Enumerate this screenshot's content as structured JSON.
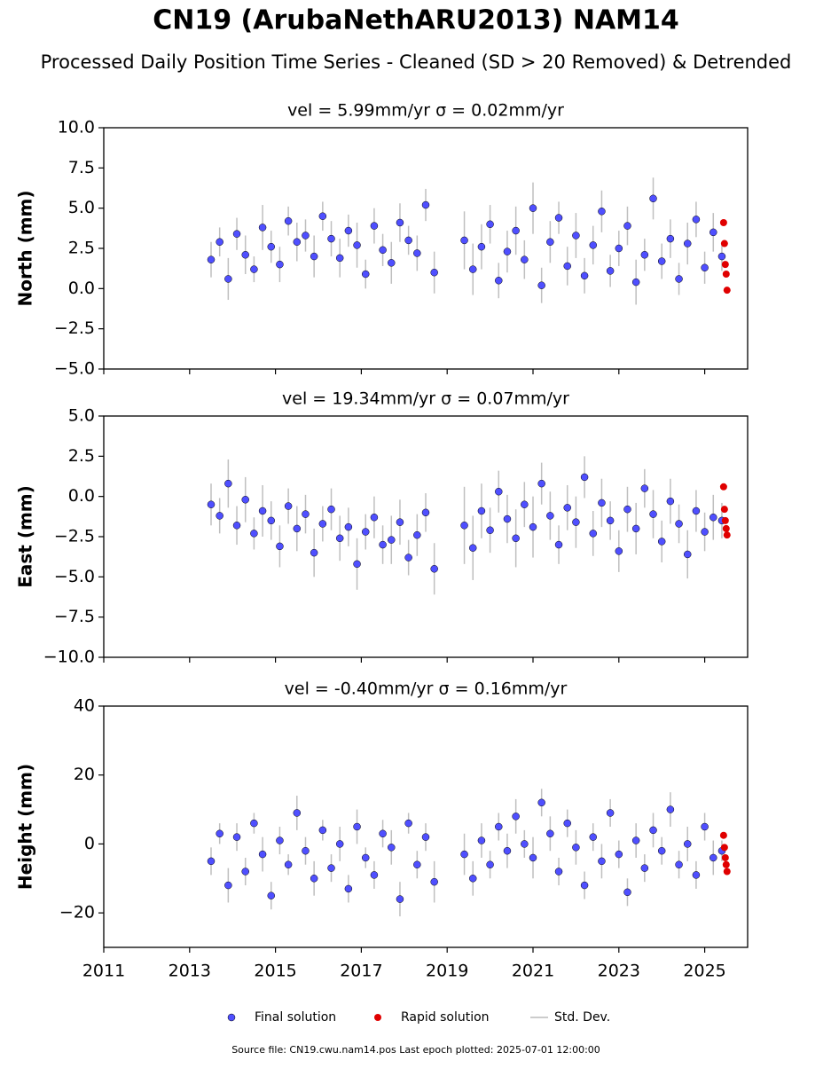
{
  "title": "CN19 (ArubaNethARU2013) NAM14",
  "subtitle": "Processed Daily Position Time Series - Cleaned (SD > 20 Removed) & Detrended",
  "footer": "Source file: CN19.cwu.nam14.pos  Last epoch plotted: 2025-07-01 12:00:00",
  "chart_data": [
    {
      "type": "scatter",
      "title": "vel = 5.99mm/yr   σ = 0.02mm/yr",
      "y_label": "North (mm)",
      "xlim": [
        2011,
        2026
      ],
      "xticks": [
        2011,
        2013,
        2015,
        2017,
        2019,
        2021,
        2023,
        2025
      ],
      "ylim": [
        -5,
        10
      ],
      "yticks": [
        {
          "value": -5,
          "label": "−5.0"
        },
        {
          "value": -2.5,
          "label": "−2.5"
        },
        {
          "value": 0,
          "label": "0.0"
        },
        2.5,
        {
          "value": 5,
          "label": "5.0"
        },
        7.5,
        {
          "value": 10,
          "label": "10.0"
        }
      ],
      "series": [
        {
          "name": "Final solution",
          "color": "#4f4fff",
          "error_name": "Std. Dev.",
          "error_color": "#b0b0b0",
          "x": [
            2013.5,
            2013.7,
            2013.9,
            2014.1,
            2014.3,
            2014.5,
            2014.7,
            2014.9,
            2015.1,
            2015.3,
            2015.5,
            2015.7,
            2015.9,
            2016.1,
            2016.3,
            2016.5,
            2016.7,
            2016.9,
            2017.1,
            2017.3,
            2017.5,
            2017.7,
            2017.9,
            2018.1,
            2018.3,
            2018.5,
            2018.7,
            2019.4,
            2019.6,
            2019.8,
            2020.0,
            2020.2,
            2020.4,
            2020.6,
            2020.8,
            2021.0,
            2021.2,
            2021.4,
            2021.6,
            2021.8,
            2022.0,
            2022.2,
            2022.4,
            2022.6,
            2022.8,
            2023.0,
            2023.2,
            2023.4,
            2023.6,
            2023.8,
            2024.0,
            2024.2,
            2024.4,
            2024.6,
            2024.8,
            2025.0,
            2025.2,
            2025.4
          ],
          "values": [
            1.8,
            2.9,
            0.6,
            3.4,
            2.1,
            1.2,
            3.8,
            2.6,
            1.5,
            4.2,
            2.9,
            3.3,
            2.0,
            4.5,
            3.1,
            1.9,
            3.6,
            2.7,
            0.9,
            3.9,
            2.4,
            1.6,
            4.1,
            3.0,
            2.2,
            5.2,
            1.0,
            3.0,
            1.2,
            2.6,
            4.0,
            0.5,
            2.3,
            3.6,
            1.8,
            5.0,
            0.2,
            2.9,
            4.4,
            1.4,
            3.3,
            0.8,
            2.7,
            4.8,
            1.1,
            2.5,
            3.9,
            0.4,
            2.1,
            5.6,
            1.7,
            3.1,
            0.6,
            2.8,
            4.3,
            1.3,
            3.5,
            2.0
          ],
          "errors": [
            1.1,
            0.9,
            1.3,
            1.0,
            1.2,
            0.8,
            1.4,
            1.0,
            1.1,
            0.9,
            1.2,
            1.0,
            1.3,
            0.9,
            1.1,
            1.2,
            1.0,
            1.4,
            0.9,
            1.1,
            1.0,
            1.3,
            1.2,
            0.9,
            1.1,
            1.0,
            1.3,
            1.8,
            1.6,
            1.4,
            1.2,
            1.1,
            1.3,
            1.5,
            1.2,
            1.6,
            1.1,
            1.3,
            1.0,
            1.2,
            1.4,
            1.1,
            1.2,
            1.3,
            1.0,
            1.1,
            1.2,
            1.4,
            1.0,
            1.3,
            1.1,
            1.2,
            1.0,
            1.3,
            1.1,
            1.0,
            1.2,
            0.9
          ]
        },
        {
          "name": "Rapid solution",
          "color": "#e00000",
          "x": [
            2025.44,
            2025.46,
            2025.48,
            2025.5,
            2025.52
          ],
          "values": [
            4.1,
            2.8,
            1.5,
            0.9,
            -0.1
          ]
        }
      ]
    },
    {
      "type": "scatter",
      "title": "vel = 19.34mm/yr   σ = 0.07mm/yr",
      "y_label": "East (mm)",
      "xlim": [
        2011,
        2026
      ],
      "xticks": [
        2011,
        2013,
        2015,
        2017,
        2019,
        2021,
        2023,
        2025
      ],
      "ylim": [
        -10,
        5
      ],
      "yticks": [
        {
          "value": -10,
          "label": "−10.0"
        },
        {
          "value": -7.5,
          "label": "−7.5"
        },
        {
          "value": -5,
          "label": "−5.0"
        },
        {
          "value": -2.5,
          "label": "−2.5"
        },
        {
          "value": 0,
          "label": "0.0"
        },
        2.5,
        {
          "value": 5,
          "label": "5.0"
        }
      ],
      "series": [
        {
          "color": "#4f4fff",
          "error_color": "#b0b0b0",
          "x": [
            2013.5,
            2013.7,
            2013.9,
            2014.1,
            2014.3,
            2014.5,
            2014.7,
            2014.9,
            2015.1,
            2015.3,
            2015.5,
            2015.7,
            2015.9,
            2016.1,
            2016.3,
            2016.5,
            2016.7,
            2016.9,
            2017.1,
            2017.3,
            2017.5,
            2017.7,
            2017.9,
            2018.1,
            2018.3,
            2018.5,
            2018.7,
            2019.4,
            2019.6,
            2019.8,
            2020.0,
            2020.2,
            2020.4,
            2020.6,
            2020.8,
            2021.0,
            2021.2,
            2021.4,
            2021.6,
            2021.8,
            2022.0,
            2022.2,
            2022.4,
            2022.6,
            2022.8,
            2023.0,
            2023.2,
            2023.4,
            2023.6,
            2023.8,
            2024.0,
            2024.2,
            2024.4,
            2024.6,
            2024.8,
            2025.0,
            2025.2,
            2025.4
          ],
          "values": [
            -0.5,
            -1.2,
            0.8,
            -1.8,
            -0.2,
            -2.3,
            -0.9,
            -1.5,
            -3.1,
            -0.6,
            -2.0,
            -1.1,
            -3.5,
            -1.7,
            -0.8,
            -2.6,
            -1.9,
            -4.2,
            -2.2,
            -1.3,
            -3.0,
            -2.7,
            -1.6,
            -3.8,
            -2.4,
            -1.0,
            -4.5,
            -1.8,
            -3.2,
            -0.9,
            -2.1,
            0.3,
            -1.4,
            -2.6,
            -0.5,
            -1.9,
            0.8,
            -1.2,
            -3.0,
            -0.7,
            -1.6,
            1.2,
            -2.3,
            -0.4,
            -1.5,
            -3.4,
            -0.8,
            -2.0,
            0.5,
            -1.1,
            -2.8,
            -0.3,
            -1.7,
            -3.6,
            -0.9,
            -2.2,
            -1.3,
            -1.5
          ],
          "errors": [
            1.3,
            1.1,
            1.5,
            1.2,
            1.4,
            1.0,
            1.6,
            1.2,
            1.3,
            1.1,
            1.4,
            1.2,
            1.5,
            1.1,
            1.3,
            1.4,
            1.2,
            1.6,
            1.1,
            1.3,
            1.2,
            1.5,
            1.4,
            1.1,
            1.3,
            1.2,
            1.6,
            2.4,
            2.0,
            1.7,
            1.4,
            1.3,
            1.5,
            1.8,
            1.4,
            1.9,
            1.3,
            1.5,
            1.2,
            1.4,
            1.6,
            1.3,
            1.4,
            1.5,
            1.2,
            1.3,
            1.4,
            1.6,
            1.2,
            1.5,
            1.3,
            1.4,
            1.2,
            1.5,
            1.3,
            1.2,
            1.4,
            1.1
          ]
        },
        {
          "color": "#e00000",
          "x": [
            2025.44,
            2025.46,
            2025.48,
            2025.5,
            2025.52
          ],
          "values": [
            0.6,
            -0.8,
            -1.5,
            -2.0,
            -2.4
          ]
        }
      ]
    },
    {
      "type": "scatter",
      "title": "vel = -0.40mm/yr   σ = 0.16mm/yr",
      "y_label": "Height (mm)",
      "xlim": [
        2011,
        2026
      ],
      "xticks": [
        2011,
        2013,
        2015,
        2017,
        2019,
        2021,
        2023,
        2025
      ],
      "ylim": [
        -30,
        40
      ],
      "yticks": [
        {
          "value": -20,
          "label": "−20"
        },
        0,
        20,
        40
      ],
      "series": [
        {
          "color": "#4f4fff",
          "error_color": "#b0b0b0",
          "x": [
            2013.5,
            2013.7,
            2013.9,
            2014.1,
            2014.3,
            2014.5,
            2014.7,
            2014.9,
            2015.1,
            2015.3,
            2015.5,
            2015.7,
            2015.9,
            2016.1,
            2016.3,
            2016.5,
            2016.7,
            2016.9,
            2017.1,
            2017.3,
            2017.5,
            2017.7,
            2017.9,
            2018.1,
            2018.3,
            2018.5,
            2018.7,
            2019.4,
            2019.6,
            2019.8,
            2020.0,
            2020.2,
            2020.4,
            2020.6,
            2020.8,
            2021.0,
            2021.2,
            2021.4,
            2021.6,
            2021.8,
            2022.0,
            2022.2,
            2022.4,
            2022.6,
            2022.8,
            2023.0,
            2023.2,
            2023.4,
            2023.6,
            2023.8,
            2024.0,
            2024.2,
            2024.4,
            2024.6,
            2024.8,
            2025.0,
            2025.2,
            2025.4
          ],
          "values": [
            -5,
            3,
            -12,
            2,
            -8,
            6,
            -3,
            -15,
            1,
            -6,
            9,
            -2,
            -10,
            4,
            -7,
            0,
            -13,
            5,
            -4,
            -9,
            3,
            -1,
            -16,
            6,
            -6,
            2,
            -11,
            -3,
            -10,
            1,
            -6,
            5,
            -2,
            8,
            0,
            -4,
            12,
            3,
            -8,
            6,
            -1,
            -12,
            2,
            -5,
            9,
            -3,
            -14,
            1,
            -7,
            4,
            -2,
            10,
            -6,
            0,
            -9,
            5,
            -4,
            -2
          ],
          "errors": [
            4,
            3,
            5,
            4,
            4,
            3,
            5,
            4,
            4,
            3,
            5,
            4,
            5,
            3,
            4,
            5,
            4,
            5,
            3,
            4,
            4,
            5,
            5,
            3,
            4,
            4,
            6,
            6,
            5,
            5,
            4,
            4,
            5,
            5,
            4,
            6,
            4,
            5,
            4,
            4,
            5,
            4,
            4,
            5,
            4,
            4,
            4,
            5,
            4,
            5,
            4,
            5,
            4,
            5,
            4,
            4,
            5,
            3
          ]
        },
        {
          "color": "#e00000",
          "x": [
            2025.44,
            2025.46,
            2025.48,
            2025.5,
            2025.52
          ],
          "values": [
            2.5,
            -1,
            -4,
            -6,
            -8
          ]
        }
      ]
    }
  ]
}
